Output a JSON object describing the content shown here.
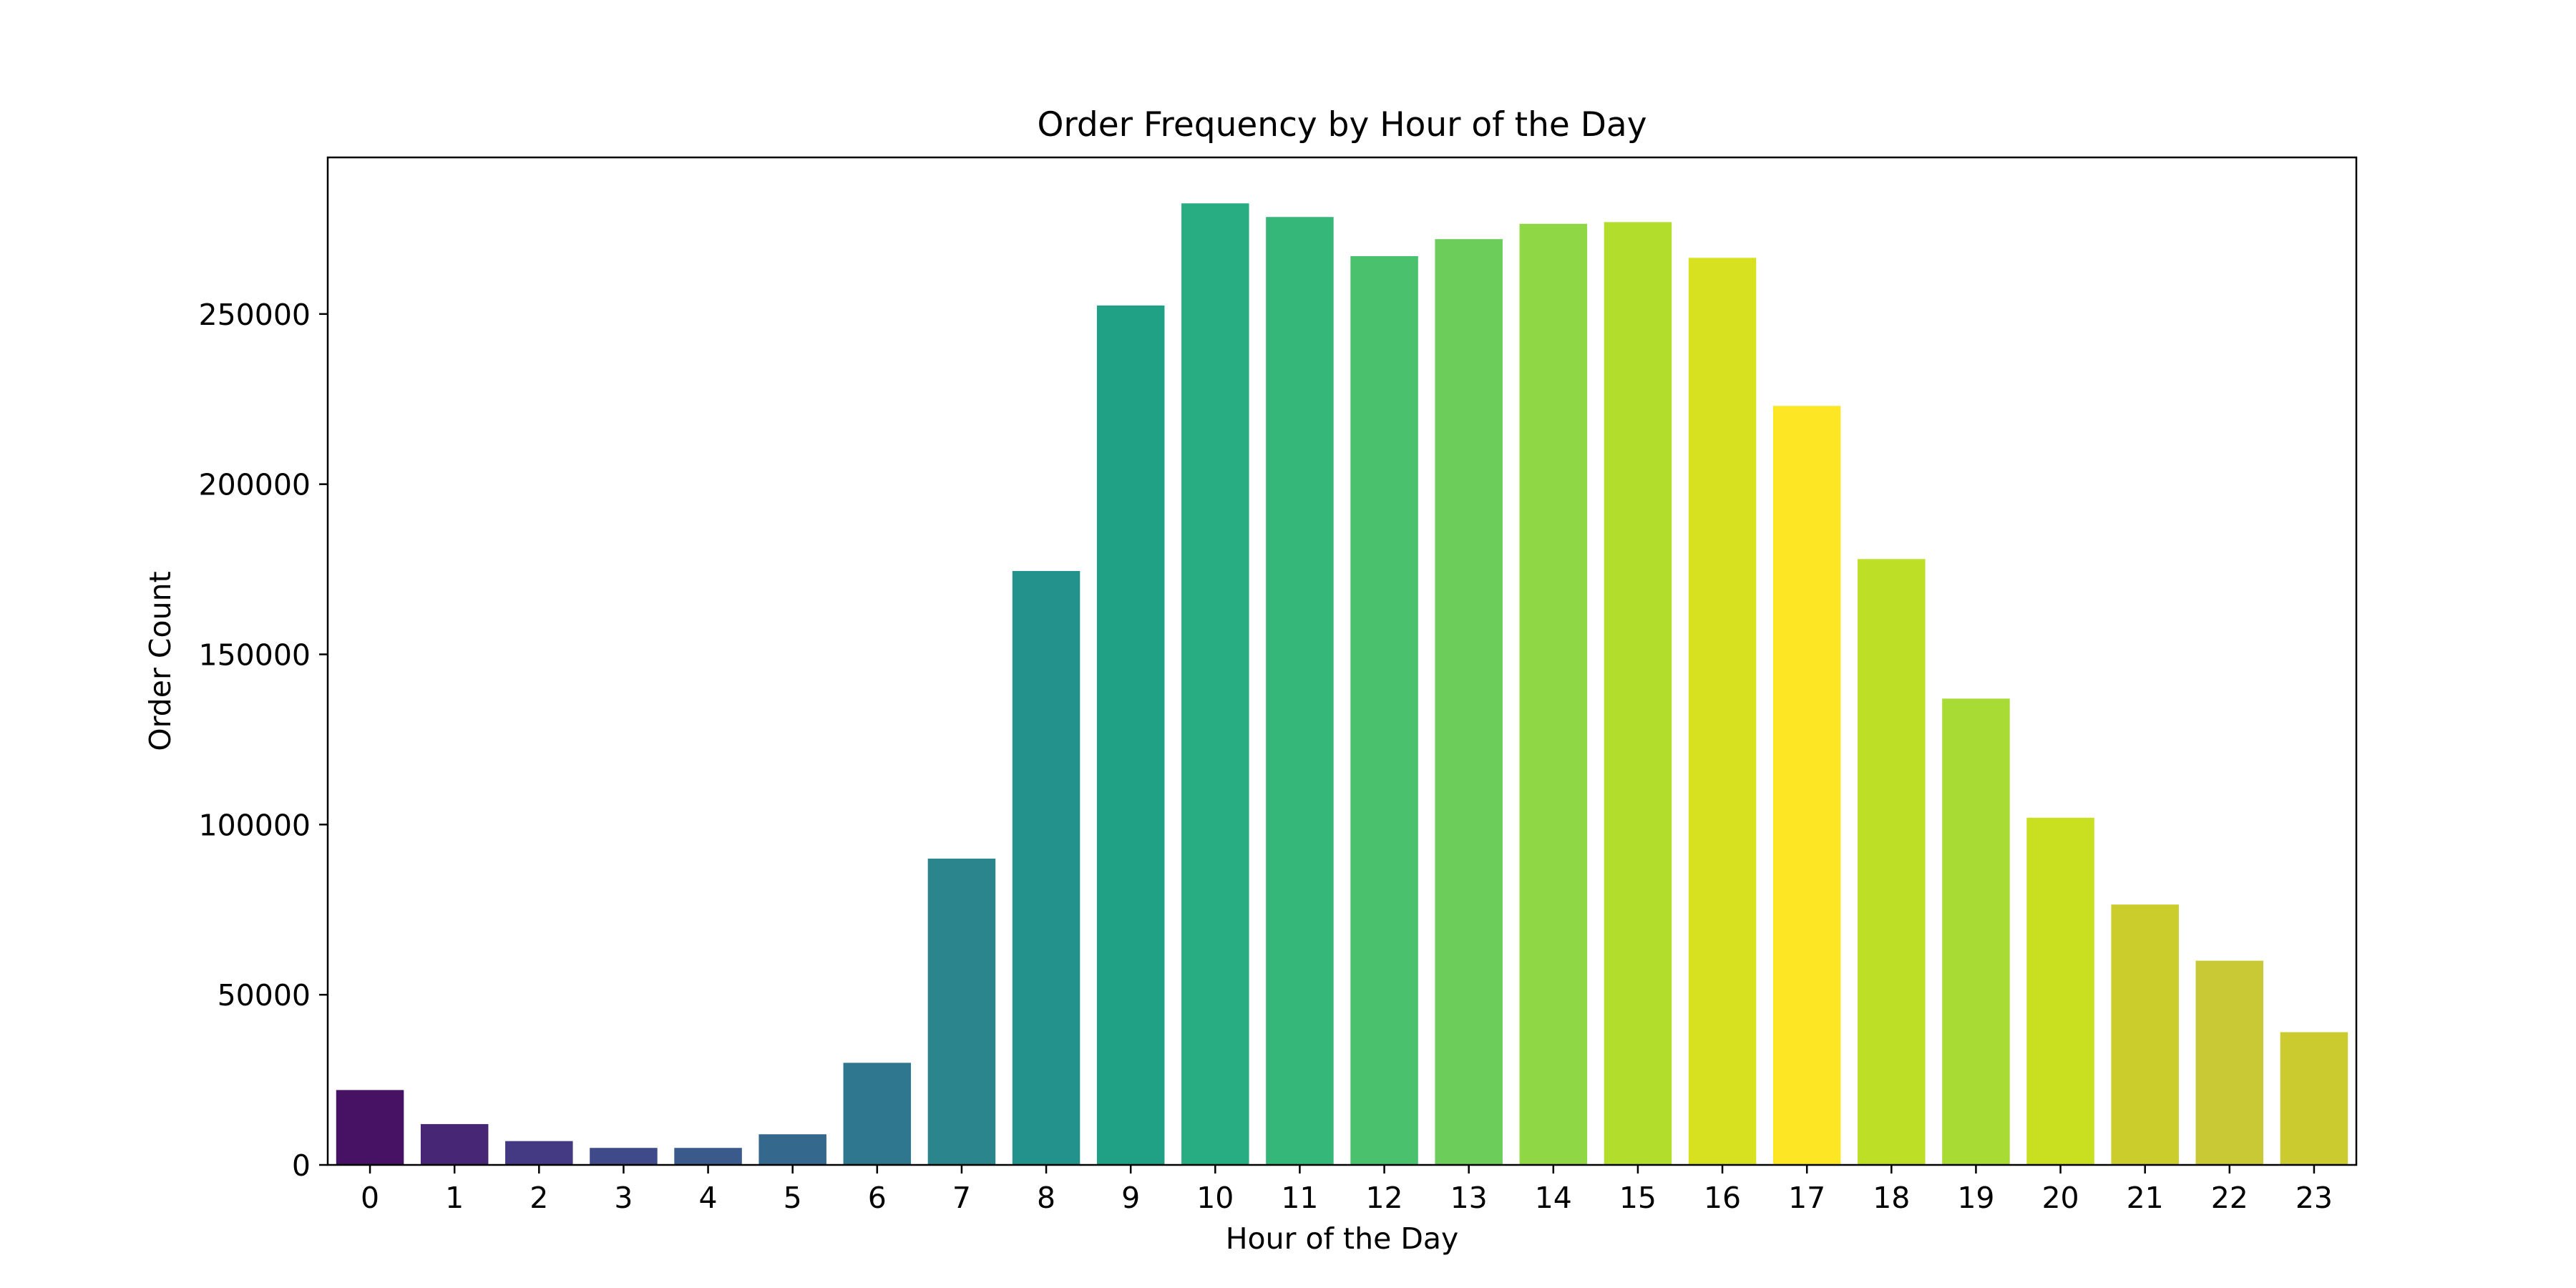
{
  "chart_data": {
    "type": "bar",
    "title": "Order Frequency by Hour of the Day",
    "xlabel": "Hour of the Day",
    "ylabel": "Order Count",
    "categories": [
      "0",
      "1",
      "2",
      "3",
      "4",
      "5",
      "6",
      "7",
      "8",
      "9",
      "10",
      "11",
      "12",
      "13",
      "14",
      "15",
      "16",
      "17",
      "18",
      "19",
      "20",
      "21",
      "22",
      "23"
    ],
    "values": [
      22000,
      12000,
      7000,
      5000,
      5000,
      9000,
      30000,
      90000,
      174500,
      252500,
      282500,
      278500,
      267000,
      272000,
      276500,
      277000,
      266500,
      223000,
      178000,
      137000,
      102000,
      76500,
      60000,
      39000
    ],
    "ylim": [
      0,
      296000
    ],
    "yticks": [
      0,
      50000,
      100000,
      150000,
      200000,
      250000
    ],
    "ytick_labels": [
      "0",
      "50000",
      "100000",
      "150000",
      "200000",
      "250000"
    ],
    "colors": [
      "#471164",
      "#482676",
      "#443983",
      "#3f4a8a",
      "#3a5a8c",
      "#34698d",
      "#2e778e",
      "#2a858d",
      "#24928c",
      "#20a085",
      "#27ad81",
      "#35b779",
      "#4ac16d",
      "#6ccd5a",
      "#8fd744",
      "#b2dd2d",
      "#d7e11f",
      "#fde725",
      "#bddf26",
      "#a8db34",
      "#c8e020",
      "#cbcd2d",
      "#c8c934",
      "#cbcb30"
    ],
    "grid": false,
    "legend": "none"
  }
}
